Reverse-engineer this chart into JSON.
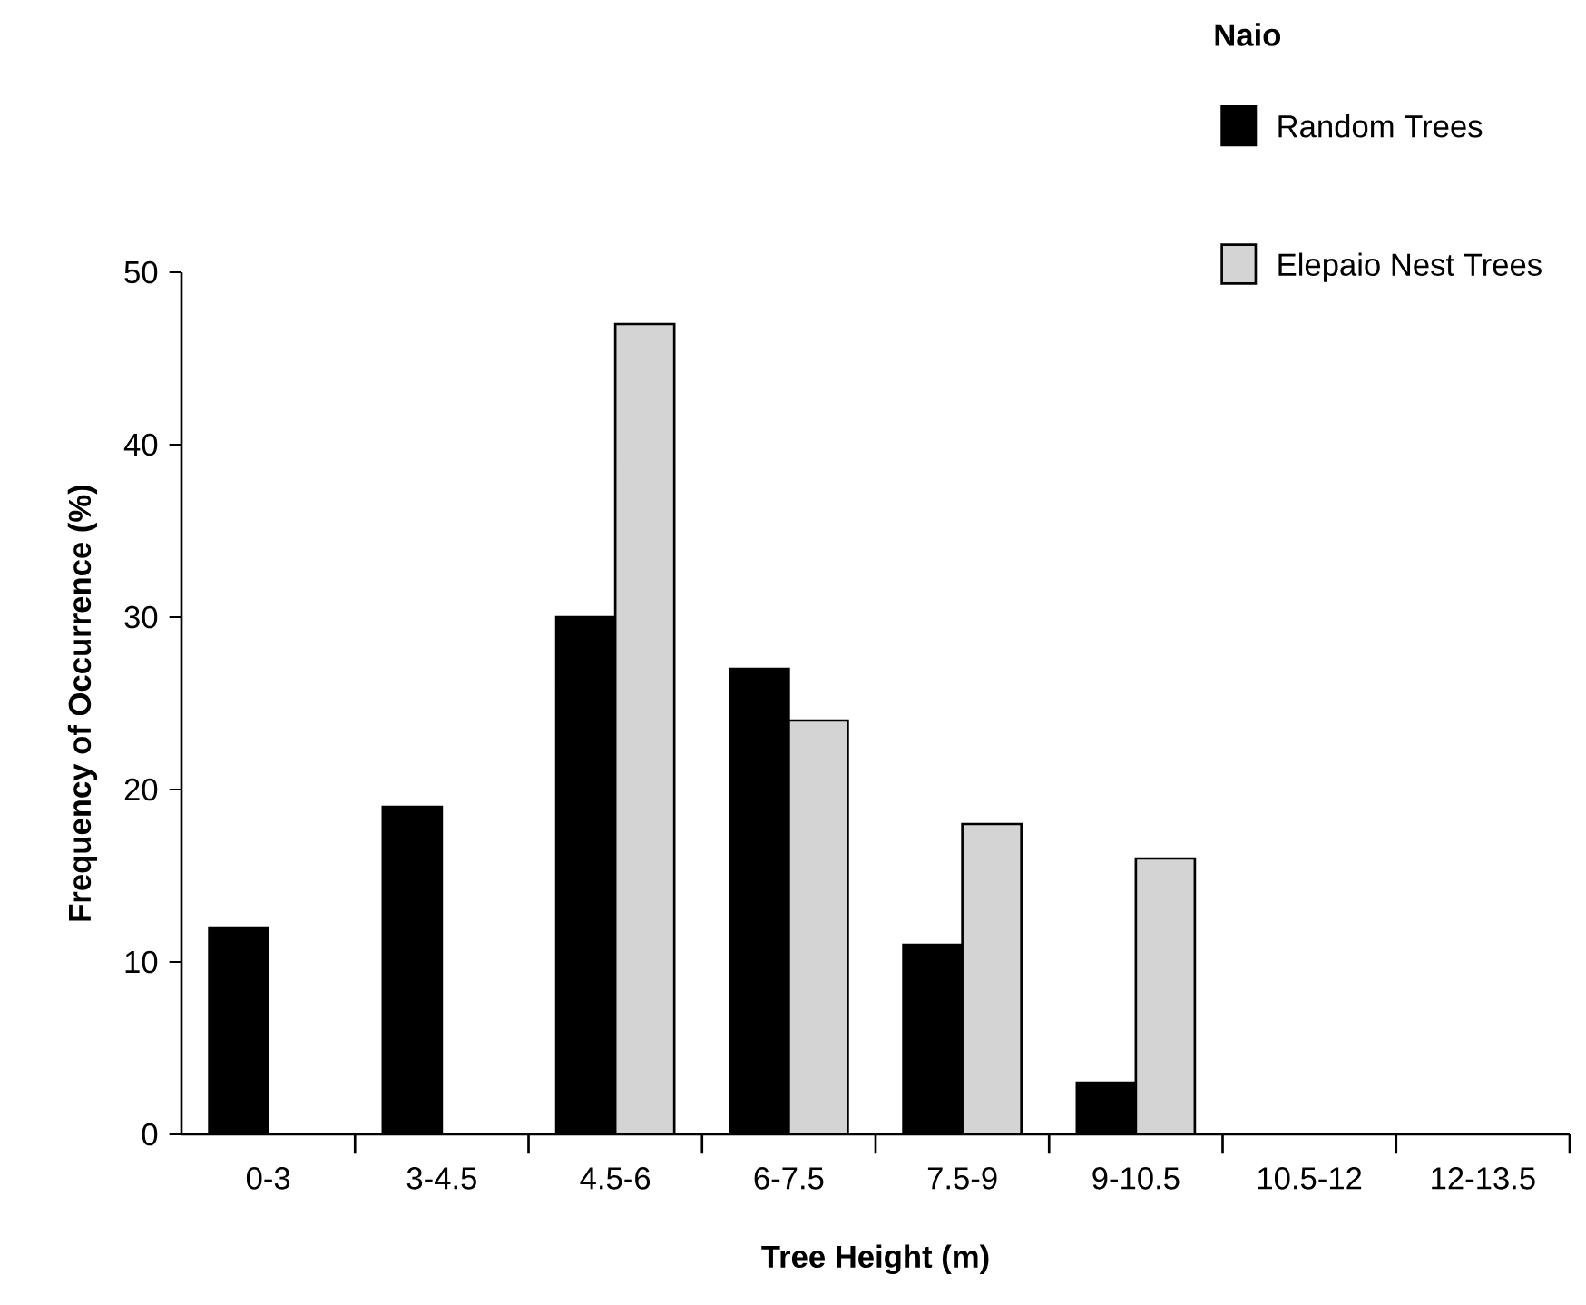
{
  "chart_data": {
    "type": "bar",
    "xlabel": "Tree Height (m)",
    "ylabel": "Frequency of Occurrence (%)",
    "legend_title": "Naio",
    "legend": "top right",
    "categories": [
      "0-3",
      "3-4.5",
      "4.5-6",
      "6-7.5",
      "7.5-9",
      "9-10.5",
      "10.5-12",
      "12-13.5"
    ],
    "series": [
      {
        "name": "Random Trees",
        "color": "#000000",
        "values": [
          12,
          19,
          30,
          27,
          11,
          3,
          0,
          0
        ]
      },
      {
        "name": "Elepaio Nest Trees",
        "color": "#d4d4d4",
        "values": [
          0,
          0,
          47,
          24,
          18,
          16,
          0,
          0
        ]
      }
    ],
    "ylim": [
      0,
      50
    ],
    "yticks": [
      0,
      10,
      20,
      30,
      40,
      50
    ]
  }
}
